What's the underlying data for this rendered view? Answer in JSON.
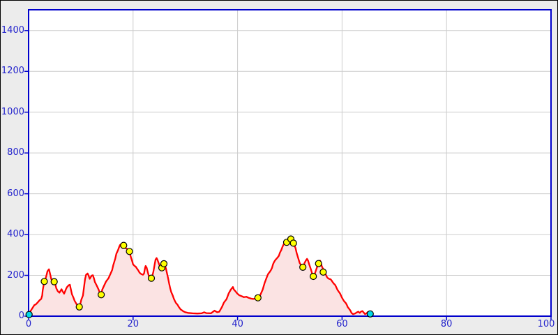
{
  "window": {
    "background": "#ececec"
  },
  "chart_data": {
    "type": "area",
    "title": "",
    "xlabel": "",
    "ylabel": "",
    "xlim": [
      0,
      100
    ],
    "ylim": [
      0,
      1502
    ],
    "grid": true,
    "legend": "none",
    "xticks": [
      0,
      20,
      40,
      60,
      80,
      100
    ],
    "yticks": [
      0,
      200,
      400,
      600,
      800,
      1000,
      1200,
      1400
    ],
    "xticklabels": [
      "0",
      "20",
      "40",
      "60",
      "80",
      "100"
    ],
    "yticklabels": [
      "0",
      "200",
      "400",
      "600",
      "800",
      "1000",
      "1200",
      "1400"
    ],
    "plot_bg": "#ffffff",
    "axis_color": "#0000cc",
    "grid_color": "#cccccc",
    "tick_label_color": "#2222cc",
    "series": [
      {
        "name": "elevation-profile",
        "line_color": "#ff0000",
        "fill_color": "#fbe3e3",
        "points": [
          [
            0,
            8
          ],
          [
            0.3,
            22
          ],
          [
            0.7,
            38
          ],
          [
            1.1,
            54
          ],
          [
            1.4,
            58
          ],
          [
            1.8,
            69
          ],
          [
            2.1,
            78
          ],
          [
            2.4,
            84
          ],
          [
            2.6,
            101
          ],
          [
            2.7,
            126
          ],
          [
            3,
            170
          ],
          [
            3.2,
            181
          ],
          [
            3.4,
            198
          ],
          [
            3.6,
            220
          ],
          [
            3.9,
            230
          ],
          [
            4.1,
            209
          ],
          [
            4.3,
            186
          ],
          [
            4.5,
            171
          ],
          [
            4.9,
            169
          ],
          [
            5.1,
            158
          ],
          [
            5.3,
            137
          ],
          [
            5.6,
            122
          ],
          [
            5.9,
            115
          ],
          [
            6.1,
            124
          ],
          [
            6.3,
            132
          ],
          [
            6.5,
            122
          ],
          [
            6.8,
            110
          ],
          [
            7,
            122
          ],
          [
            7.2,
            135
          ],
          [
            7.4,
            144
          ],
          [
            7.7,
            152
          ],
          [
            7.9,
            154
          ],
          [
            8.1,
            130
          ],
          [
            8.3,
            107
          ],
          [
            8.6,
            90
          ],
          [
            8.8,
            76
          ],
          [
            9,
            67
          ],
          [
            9.2,
            58
          ],
          [
            9.5,
            49
          ],
          [
            9.7,
            44
          ],
          [
            9.9,
            61
          ],
          [
            10.1,
            81
          ],
          [
            10.4,
            101
          ],
          [
            10.6,
            141
          ],
          [
            10.8,
            181
          ],
          [
            11,
            203
          ],
          [
            11.3,
            209
          ],
          [
            11.5,
            198
          ],
          [
            11.7,
            183
          ],
          [
            11.9,
            192
          ],
          [
            12.1,
            199
          ],
          [
            12.3,
            201
          ],
          [
            12.5,
            186
          ],
          [
            12.7,
            167
          ],
          [
            13,
            152
          ],
          [
            13.2,
            141
          ],
          [
            13.4,
            130
          ],
          [
            13.6,
            116
          ],
          [
            13.9,
            105
          ],
          [
            14.1,
            130
          ],
          [
            14.4,
            147
          ],
          [
            14.8,
            169
          ],
          [
            15.3,
            186
          ],
          [
            15.7,
            209
          ],
          [
            16,
            226
          ],
          [
            16.2,
            249
          ],
          [
            16.4,
            266
          ],
          [
            16.6,
            283
          ],
          [
            16.8,
            306
          ],
          [
            17.1,
            323
          ],
          [
            17.3,
            337
          ],
          [
            17.5,
            349
          ],
          [
            17.7,
            353
          ],
          [
            17.9,
            356
          ],
          [
            18.2,
            347
          ],
          [
            18.4,
            340
          ],
          [
            18.6,
            334
          ],
          [
            18.9,
            328
          ],
          [
            19.1,
            323
          ],
          [
            19.3,
            317
          ],
          [
            19.4,
            306
          ],
          [
            19.6,
            288
          ],
          [
            19.8,
            272
          ],
          [
            20,
            254
          ],
          [
            20.3,
            246
          ],
          [
            20.5,
            243
          ],
          [
            20.7,
            235
          ],
          [
            21,
            224
          ],
          [
            21.2,
            215
          ],
          [
            21.4,
            209
          ],
          [
            21.6,
            206
          ],
          [
            21.9,
            203
          ],
          [
            22.1,
            209
          ],
          [
            22.3,
            237
          ],
          [
            22.4,
            246
          ],
          [
            22.6,
            237
          ],
          [
            22.8,
            217
          ],
          [
            23,
            198
          ],
          [
            23.2,
            190
          ],
          [
            23.5,
            186
          ],
          [
            23.7,
            198
          ],
          [
            23.9,
            220
          ],
          [
            24.1,
            249
          ],
          [
            24.3,
            277
          ],
          [
            24.5,
            285
          ],
          [
            24.7,
            274
          ],
          [
            24.9,
            260
          ],
          [
            25.1,
            246
          ],
          [
            25.3,
            237
          ],
          [
            25.4,
            232
          ],
          [
            25.6,
            246
          ],
          [
            25.8,
            258
          ],
          [
            26,
            262
          ],
          [
            26.1,
            249
          ],
          [
            26.3,
            232
          ],
          [
            26.5,
            209
          ],
          [
            26.7,
            186
          ],
          [
            26.9,
            160
          ],
          [
            27.1,
            137
          ],
          [
            27.3,
            118
          ],
          [
            27.6,
            101
          ],
          [
            27.8,
            86
          ],
          [
            28,
            75
          ],
          [
            28.2,
            65
          ],
          [
            28.5,
            56
          ],
          [
            28.7,
            47
          ],
          [
            28.9,
            40
          ],
          [
            29.1,
            33
          ],
          [
            29.4,
            28
          ],
          [
            29.6,
            24
          ],
          [
            30,
            19
          ],
          [
            30.5,
            16
          ],
          [
            31.4,
            14
          ],
          [
            32.3,
            13
          ],
          [
            33.1,
            14
          ],
          [
            33.6,
            19
          ],
          [
            34,
            15
          ],
          [
            34.9,
            14
          ],
          [
            35.6,
            27
          ],
          [
            36.1,
            19
          ],
          [
            36.5,
            22
          ],
          [
            37,
            44
          ],
          [
            37.4,
            67
          ],
          [
            37.9,
            84
          ],
          [
            38.3,
            112
          ],
          [
            38.7,
            130
          ],
          [
            39.1,
            143
          ],
          [
            39.3,
            130
          ],
          [
            39.6,
            122
          ],
          [
            39.9,
            112
          ],
          [
            40.3,
            103
          ],
          [
            40.8,
            98
          ],
          [
            41.2,
            93
          ],
          [
            41.7,
            95
          ],
          [
            42.1,
            90
          ],
          [
            42.6,
            86
          ],
          [
            43,
            84
          ],
          [
            43.4,
            86
          ],
          [
            43.9,
            90
          ],
          [
            44.3,
            101
          ],
          [
            44.8,
            130
          ],
          [
            45.2,
            164
          ],
          [
            45.7,
            198
          ],
          [
            45.9,
            209
          ],
          [
            46.1,
            215
          ],
          [
            46.4,
            226
          ],
          [
            46.6,
            237
          ],
          [
            46.8,
            255
          ],
          [
            47,
            266
          ],
          [
            47.2,
            274
          ],
          [
            47.5,
            283
          ],
          [
            47.7,
            289
          ],
          [
            47.9,
            296
          ],
          [
            48.1,
            311
          ],
          [
            48.4,
            326
          ],
          [
            48.6,
            340
          ],
          [
            48.8,
            351
          ],
          [
            49,
            360
          ],
          [
            49.3,
            365
          ],
          [
            49.4,
            368
          ],
          [
            49.7,
            382
          ],
          [
            49.9,
            385
          ],
          [
            50.2,
            381
          ],
          [
            50.4,
            374
          ],
          [
            50.6,
            365
          ],
          [
            50.8,
            351
          ],
          [
            51.1,
            334
          ],
          [
            51.3,
            311
          ],
          [
            51.5,
            294
          ],
          [
            51.7,
            277
          ],
          [
            51.9,
            260
          ],
          [
            52.2,
            249
          ],
          [
            52.3,
            243
          ],
          [
            52.5,
            240
          ],
          [
            52.7,
            249
          ],
          [
            52.8,
            260
          ],
          [
            53.1,
            274
          ],
          [
            53.3,
            281
          ],
          [
            53.5,
            272
          ],
          [
            53.7,
            255
          ],
          [
            54,
            232
          ],
          [
            54.2,
            215
          ],
          [
            54.4,
            201
          ],
          [
            54.5,
            195
          ],
          [
            54.7,
            203
          ],
          [
            54.9,
            217
          ],
          [
            55.1,
            232
          ],
          [
            55.3,
            246
          ],
          [
            55.5,
            258
          ],
          [
            55.6,
            266
          ],
          [
            55.8,
            272
          ],
          [
            56,
            260
          ],
          [
            56.1,
            246
          ],
          [
            56.3,
            235
          ],
          [
            56.5,
            229
          ],
          [
            56.7,
            215
          ],
          [
            56.9,
            203
          ],
          [
            57.1,
            192
          ],
          [
            57.3,
            186
          ],
          [
            57.5,
            183
          ],
          [
            57.8,
            181
          ],
          [
            58,
            175
          ],
          [
            58.2,
            167
          ],
          [
            58.4,
            160
          ],
          [
            58.7,
            152
          ],
          [
            58.9,
            141
          ],
          [
            59.1,
            130
          ],
          [
            59.3,
            122
          ],
          [
            59.6,
            112
          ],
          [
            59.8,
            101
          ],
          [
            60,
            90
          ],
          [
            60.2,
            81
          ],
          [
            60.4,
            73
          ],
          [
            60.7,
            65
          ],
          [
            60.9,
            56
          ],
          [
            61.1,
            44
          ],
          [
            61.3,
            38
          ],
          [
            61.6,
            27
          ],
          [
            61.8,
            16
          ],
          [
            62.1,
            10
          ],
          [
            62.5,
            13
          ],
          [
            62.8,
            18
          ],
          [
            63.1,
            22
          ],
          [
            63.4,
            16
          ],
          [
            63.6,
            22
          ],
          [
            63.9,
            25
          ],
          [
            64.1,
            19
          ],
          [
            64.4,
            10
          ],
          [
            64.7,
            14
          ],
          [
            64.9,
            20
          ],
          [
            65.2,
            18
          ],
          [
            65.4,
            11
          ]
        ]
      }
    ],
    "markers": [
      {
        "name": "waypoint",
        "fill": "#ffff00",
        "outline": "#000000",
        "points": [
          [
            3,
            170
          ],
          [
            4.9,
            169
          ],
          [
            9.7,
            45
          ],
          [
            13.9,
            105
          ],
          [
            18.2,
            347
          ],
          [
            19.3,
            317
          ],
          [
            23.5,
            186
          ],
          [
            25.5,
            237
          ],
          [
            25.9,
            257
          ],
          [
            43.9,
            90
          ],
          [
            49.4,
            362
          ],
          [
            50.2,
            378
          ],
          [
            50.7,
            358
          ],
          [
            52.5,
            240
          ],
          [
            54.5,
            195
          ],
          [
            55.5,
            258
          ],
          [
            56.4,
            216
          ]
        ]
      },
      {
        "name": "route-endpoint",
        "fill": "#00d8e8",
        "outline": "#000000",
        "points": [
          [
            0.1,
            8
          ],
          [
            65.4,
            11
          ]
        ]
      }
    ]
  }
}
